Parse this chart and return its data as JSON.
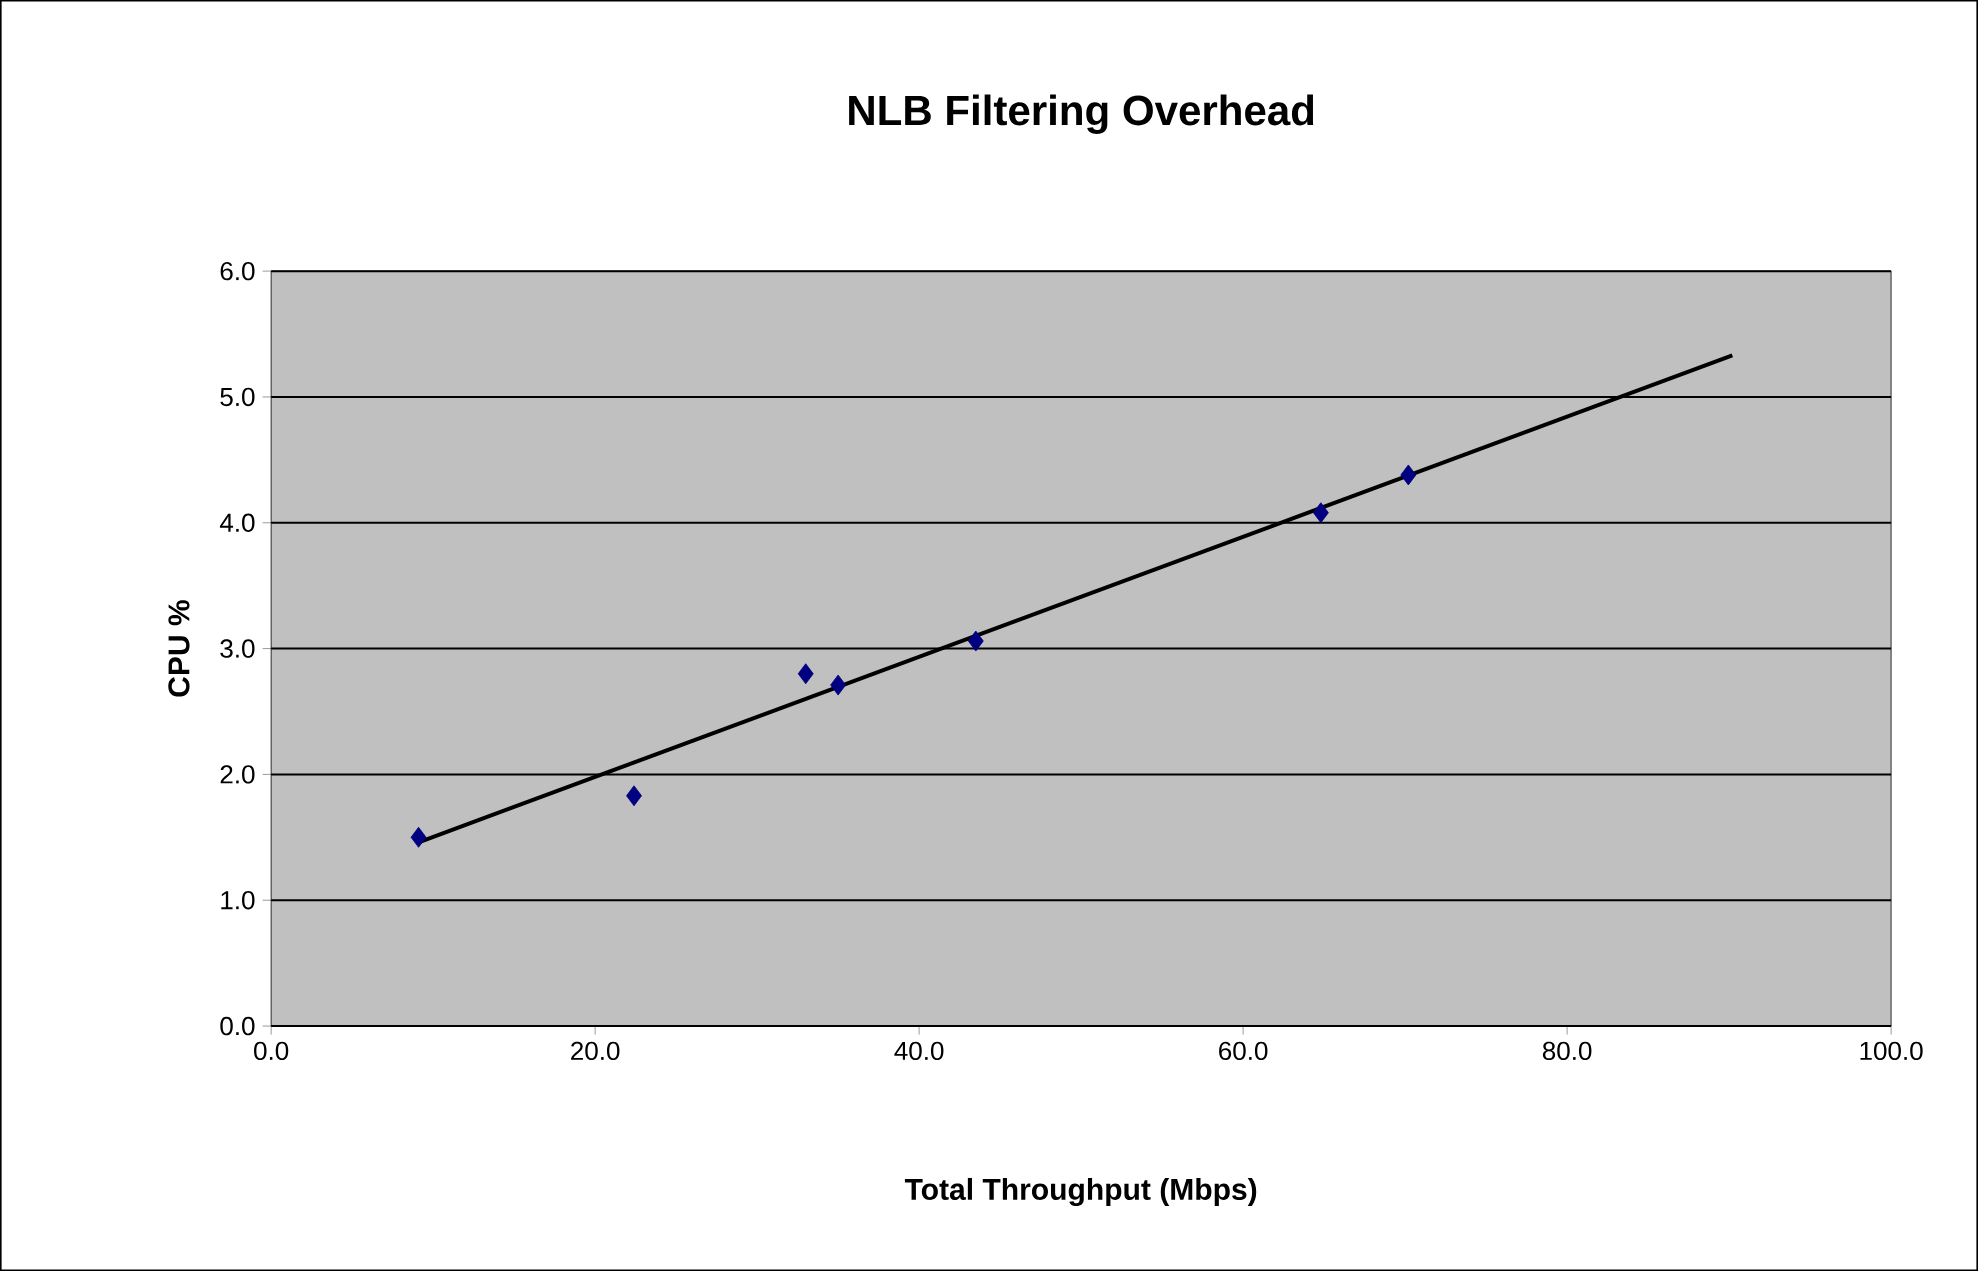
{
  "chart_data": {
    "type": "scatter",
    "title": "NLB Filtering Overhead",
    "xlabel": "Total Throughput (Mbps)",
    "ylabel": "CPU %",
    "xlim": [
      0,
      100
    ],
    "xticks": [
      {
        "value": 0,
        "label": "0.0"
      },
      {
        "value": 20,
        "label": "20.0"
      },
      {
        "value": 40,
        "label": "40.0"
      },
      {
        "value": 60,
        "label": "60.0"
      },
      {
        "value": 80,
        "label": "80.0"
      },
      {
        "value": 100,
        "label": "100.0"
      }
    ],
    "ylim": [
      0,
      6
    ],
    "yticks": [
      {
        "value": 0,
        "label": "0.0"
      },
      {
        "value": 1,
        "label": "1.0"
      },
      {
        "value": 2,
        "label": "2.0"
      },
      {
        "value": 3,
        "label": "3.0"
      },
      {
        "value": 4,
        "label": "4.0"
      },
      {
        "value": 5,
        "label": "5.0"
      },
      {
        "value": 6,
        "label": "6.0"
      }
    ],
    "grid": "y",
    "series": [
      {
        "marker": "diamond",
        "color": "#000080",
        "x": [
          9.1,
          22.4,
          33.0,
          35.0,
          43.5,
          64.8,
          70.2
        ],
        "values": [
          1.5,
          1.83,
          2.8,
          2.71,
          3.06,
          4.08,
          4.38
        ]
      },
      {
        "type": "line",
        "marker": "none",
        "color": "#000000",
        "x": [
          9.1,
          90.2
        ],
        "values": [
          1.46,
          5.33
        ]
      }
    ]
  }
}
